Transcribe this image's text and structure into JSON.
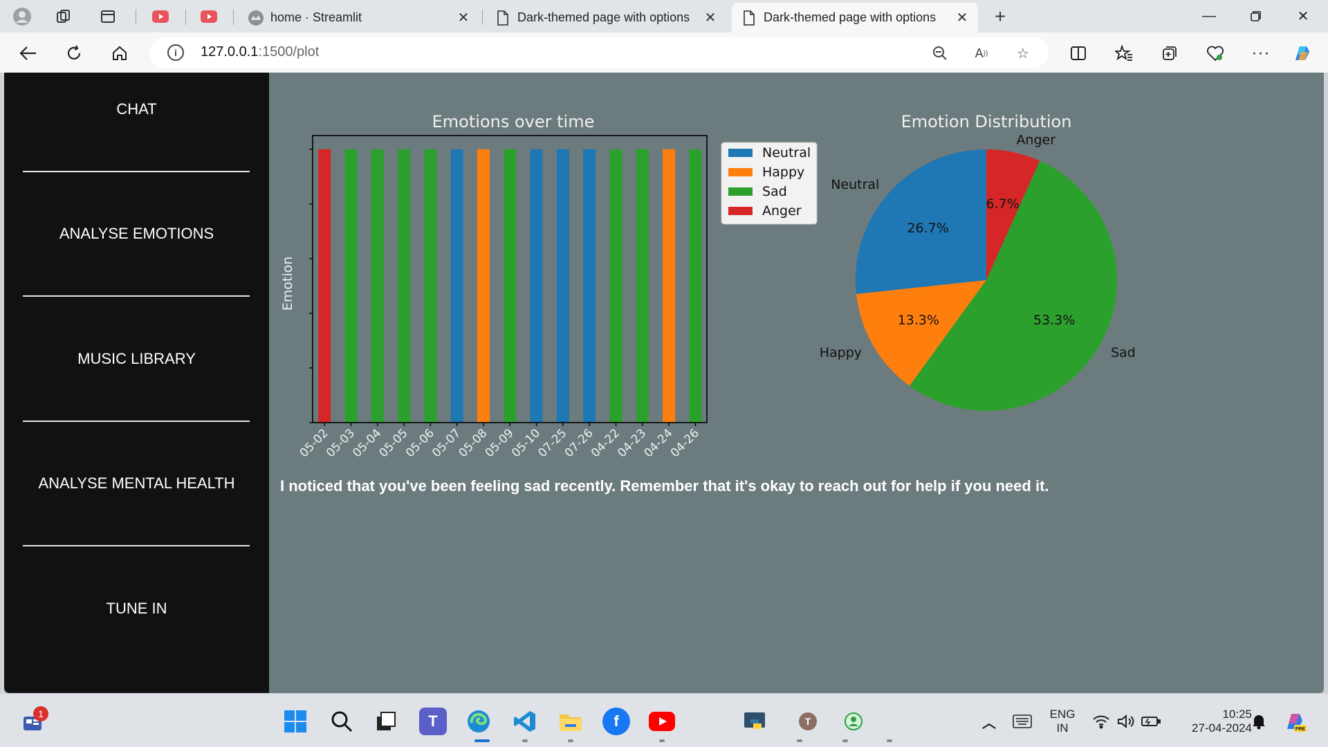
{
  "browser": {
    "tabs": [
      {
        "label": "home · Streamlit",
        "active": false
      },
      {
        "label": "Dark-themed page with options",
        "active": false
      },
      {
        "label": "Dark-themed page with options",
        "active": true
      }
    ],
    "url_host": "127.0.0.1",
    "url_rest": ":1500/plot"
  },
  "sidebar": {
    "items": [
      {
        "label": "CHAT"
      },
      {
        "label": "ANALYSE EMOTIONS"
      },
      {
        "label": "MUSIC LIBRARY"
      },
      {
        "label": "ANALYSE MENTAL HEALTH"
      },
      {
        "label": "TUNE IN"
      }
    ]
  },
  "message": "I noticed that you've been feeling sad recently. Remember that it's okay to reach out for help if you need it.",
  "colors": {
    "Neutral": "#1f77b4",
    "Happy": "#ff7f0e",
    "Sad": "#2ca02c",
    "Anger": "#d62728"
  },
  "chart_data": [
    {
      "type": "bar",
      "title": "Emotions over time",
      "xlabel": "",
      "ylabel": "Emotion",
      "categories": [
        "05-02",
        "05-03",
        "05-04",
        "05-05",
        "05-06",
        "05-07",
        "05-08",
        "05-09",
        "05-10",
        "07-25",
        "07-26",
        "04-22",
        "04-23",
        "04-24",
        "04-26"
      ],
      "values": [
        1,
        1,
        1,
        1,
        1,
        1,
        1,
        1,
        1,
        1,
        1,
        1,
        1,
        1,
        1
      ],
      "emotion_per_date": [
        "Anger",
        "Sad",
        "Sad",
        "Sad",
        "Sad",
        "Neutral",
        "Happy",
        "Sad",
        "Neutral",
        "Neutral",
        "Neutral",
        "Sad",
        "Sad",
        "Happy",
        "Sad"
      ],
      "legend": [
        "Neutral",
        "Happy",
        "Sad",
        "Anger"
      ],
      "legend_position": "outside-right",
      "grid": false
    },
    {
      "type": "pie",
      "title": "Emotion Distribution",
      "labels": [
        "Neutral",
        "Happy",
        "Sad",
        "Anger"
      ],
      "values": [
        26.7,
        13.3,
        53.3,
        6.7
      ],
      "value_labels": [
        "26.7%",
        "13.3%",
        "53.3%",
        "6.7%"
      ]
    }
  ],
  "taskbar": {
    "badge": "1",
    "lang_line1": "ENG",
    "lang_line2": "IN",
    "time": "10:25",
    "date": "27-04-2024"
  }
}
